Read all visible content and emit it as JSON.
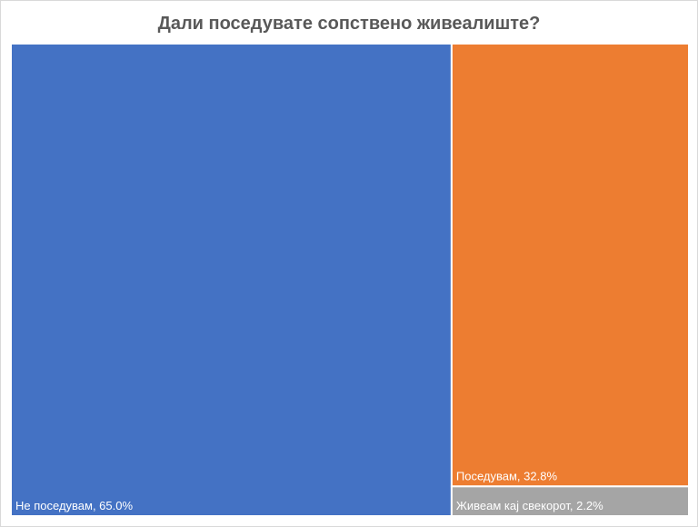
{
  "chart_data": {
    "type": "treemap",
    "title": "Дали поседувате сопствено живеалиште?",
    "categories": [
      "Не поседувам",
      "Поседувам",
      "Живеам кај свекорот"
    ],
    "values": [
      65.0,
      32.8,
      2.2
    ],
    "labels": [
      "Не поседувам, 65.0%",
      "Поседувам, 32.8%",
      "Живеам кај свекорот, 2.2%"
    ],
    "colors": [
      "#4472c4",
      "#ed7d31",
      "#a5a5a5"
    ],
    "unit": "%"
  }
}
